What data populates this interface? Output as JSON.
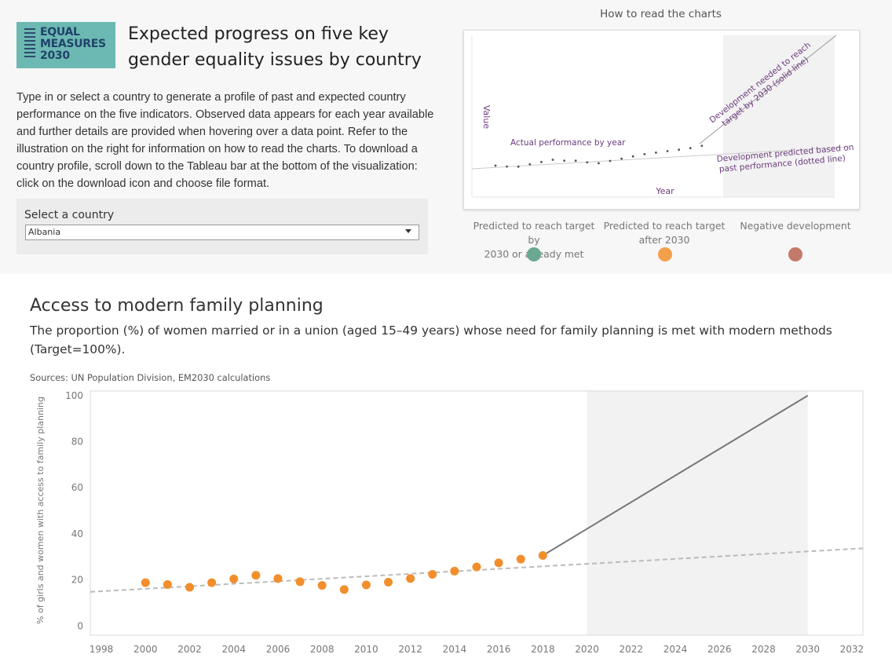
{
  "header": {
    "logo_lines": [
      "EQUAL",
      "MEASURES",
      "2030"
    ],
    "title": "Expected progress on five key gender equality issues by country",
    "intro": "Type in or select a country to generate a profile of past and expected country performance on the five indicators. Observed data appears for each year available and further details are provided when hovering over a data point. Refer to the illustration on the right for information on how to read the charts. To download a country profile, scroll down to the Tableau bar at the bottom of the visualization: click on the download icon and choose file format."
  },
  "selector": {
    "label": "Select a country",
    "value": "Albania"
  },
  "howto": {
    "title": "How to read the charts",
    "value_label": "Value",
    "year_label": "Year",
    "actual_label": "Actual performance by year",
    "needed_label_1": "Development needed to reach",
    "needed_label_2": "target by 2030 (solid line)",
    "predicted_label_1": "Development predicted based on",
    "predicted_label_2": "past performance (dotted line)",
    "annotation_color": "#6b3a7d"
  },
  "legend": [
    {
      "label_1": "Predicted to reach target by",
      "label_2": "2030 or already met",
      "color": "#6aa892"
    },
    {
      "label_1": "Predicted to reach target",
      "label_2": "after 2030",
      "color": "#f3a04c"
    },
    {
      "label_1": "Negative development",
      "label_2": "",
      "color": "#c47a68"
    }
  ],
  "section": {
    "title": "Access to modern family planning",
    "description": "The proportion (%) of women married or in a union (aged 15–49 years) whose need for family planning is met with modern methods (Target=100%).",
    "sources": "Sources: UN Population Division, EM2030 calculations"
  },
  "chart_data": {
    "type": "scatter",
    "ylabel": "% of girls and women with access to family planning",
    "xlabel": "",
    "xlim": [
      1997.5,
      2032.5
    ],
    "ylim": [
      -4,
      102
    ],
    "x_ticks": [
      1998,
      2000,
      2002,
      2004,
      2006,
      2008,
      2010,
      2012,
      2014,
      2016,
      2018,
      2020,
      2022,
      2024,
      2026,
      2028,
      2030,
      2032
    ],
    "y_ticks": [
      0,
      20,
      40,
      60,
      80,
      100
    ],
    "shaded_region": [
      2020,
      2030
    ],
    "grid": false,
    "point_color": "#f28e2b",
    "series": [
      {
        "x": [
          2000,
          2001,
          2002,
          2003,
          2004,
          2005,
          2006,
          2007,
          2008,
          2009,
          2010,
          2011,
          2012,
          2013,
          2014,
          2015,
          2016,
          2017,
          2018
        ],
        "values": [
          18.8,
          18.0,
          16.8,
          18.8,
          20.4,
          22.0,
          20.6,
          19.2,
          17.6,
          15.8,
          17.8,
          19.0,
          20.6,
          22.4,
          23.8,
          25.6,
          27.4,
          29.0,
          30.6
        ]
      }
    ],
    "target_line": {
      "x": [
        2018,
        2030
      ],
      "values": [
        30.6,
        100
      ]
    },
    "trend_line": {
      "x": [
        1997.5,
        2032.5
      ],
      "values": [
        14.8,
        33.7
      ]
    }
  }
}
